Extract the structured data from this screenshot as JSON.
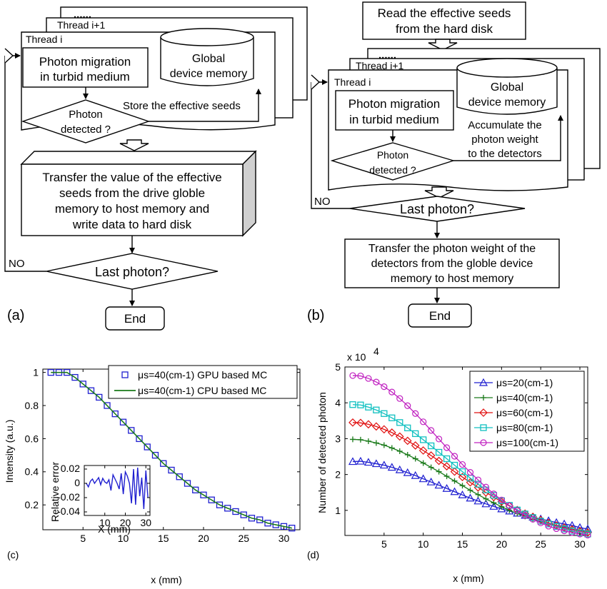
{
  "panel_a": {
    "letter": "(a)",
    "dots": "......",
    "thread_next": "Thread i+1",
    "thread": "Thread i",
    "photon_migration": [
      "Photon migration",
      "in turbid medium"
    ],
    "memory": [
      "Global",
      "device memory"
    ],
    "store_seeds": "Store the effective seeds",
    "decision": [
      "Photon",
      "detected ?"
    ],
    "transfer": [
      "Transfer the value of the effective",
      "seeds from the drive globle",
      "memory to host memory and",
      "write data to hard disk"
    ],
    "loop_no": "NO",
    "last_photon": "Last photon?",
    "end": "End"
  },
  "panel_b": {
    "letter": "(b)",
    "read_seeds": [
      "Read the effective seeds",
      "from the hard disk"
    ],
    "dots": "......",
    "thread_next": "Thread i+1",
    "thread": "Thread i",
    "photon_migration": [
      "Photon migration",
      "in turbid medium"
    ],
    "memory": [
      "Global",
      "device memory"
    ],
    "accumulate": [
      "Accumulate the",
      "photon weight",
      "to the detectors"
    ],
    "decision": [
      "Photon",
      "detected ?"
    ],
    "loop_no": "NO",
    "last_photon": "Last photon?",
    "transfer": [
      "Transfer the photon weight of the",
      "detectors from the globle device",
      "memory to host memory"
    ],
    "end": "End"
  },
  "chart_data": [
    {
      "type": "line",
      "panel_label": "(c)",
      "xlabel": "x (mm)",
      "ylabel": "Intensity (a.u.)",
      "xlim": [
        0,
        32
      ],
      "ylim": [
        0.05,
        1.02
      ],
      "xticks": [
        5,
        10,
        15,
        20,
        25,
        30
      ],
      "yticks": [
        0.2,
        0.4,
        0.6,
        0.8,
        1
      ],
      "ytick_labels": [
        "0.2",
        "0.4",
        "0.6",
        "0.8",
        "1"
      ],
      "legend_position": "top-right",
      "x": [
        1,
        2,
        3,
        4,
        5,
        6,
        7,
        8,
        9,
        10,
        11,
        12,
        13,
        14,
        15,
        16,
        17,
        18,
        19,
        20,
        21,
        22,
        23,
        24,
        25,
        26,
        27,
        28,
        29,
        30,
        31
      ],
      "series": [
        {
          "name": "μs=40(cm-1) GPU based MC",
          "marker": "square",
          "color": "#1f1fd0",
          "values": [
            1.0,
            1.0,
            1.0,
            0.97,
            0.93,
            0.89,
            0.85,
            0.8,
            0.75,
            0.7,
            0.65,
            0.6,
            0.55,
            0.5,
            0.45,
            0.41,
            0.37,
            0.33,
            0.29,
            0.26,
            0.23,
            0.2,
            0.18,
            0.16,
            0.14,
            0.12,
            0.11,
            0.09,
            0.08,
            0.07,
            0.06
          ]
        },
        {
          "name": "μs=40(cm-1) CPU based MC",
          "marker": "line",
          "color": "#1a7a1a",
          "values": [
            1.0,
            1.0,
            1.0,
            0.97,
            0.93,
            0.89,
            0.85,
            0.8,
            0.75,
            0.7,
            0.65,
            0.6,
            0.55,
            0.5,
            0.45,
            0.41,
            0.37,
            0.33,
            0.29,
            0.26,
            0.23,
            0.2,
            0.18,
            0.16,
            0.14,
            0.12,
            0.11,
            0.09,
            0.08,
            0.07,
            0.06
          ]
        }
      ],
      "inset": {
        "type": "line",
        "xlabel": "X (mm)",
        "ylabel": "Relative error",
        "xlim": [
          0,
          32
        ],
        "ylim": [
          -0.045,
          0.025
        ],
        "xticks": [
          10,
          20,
          30
        ],
        "yticks": [
          0.02,
          0,
          -0.02,
          -0.04
        ],
        "ytick_labels": [
          "0.02",
          "0",
          "-0.02",
          "-0.04"
        ],
        "color": "#1f1fd0",
        "x": [
          1,
          2,
          3,
          4,
          5,
          6,
          7,
          8,
          9,
          10,
          11,
          12,
          13,
          14,
          15,
          16,
          17,
          18,
          19,
          20,
          21,
          22,
          23,
          24,
          25,
          26,
          27,
          28,
          29,
          30,
          31
        ],
        "values": [
          0.0,
          -0.005,
          0.003,
          0.006,
          0.0,
          0.004,
          0.008,
          -0.002,
          0.007,
          0.002,
          0.0,
          0.005,
          -0.01,
          0.012,
          0.006,
          0.0,
          -0.008,
          0.014,
          -0.015,
          0.016,
          0.01,
          0.0,
          -0.028,
          0.02,
          -0.03,
          0.022,
          -0.018,
          0.008,
          -0.036,
          0.018,
          -0.02
        ]
      }
    },
    {
      "type": "line",
      "panel_label": "(d)",
      "xlabel": "x (mm)",
      "ylabel": "Number of detected photon",
      "scale_label": "x 10",
      "scale_exponent": "4",
      "xlim": [
        0,
        31
      ],
      "ylim": [
        0.3,
        5
      ],
      "xticks": [
        5,
        10,
        15,
        20,
        25,
        30
      ],
      "yticks": [
        1,
        2,
        3,
        4,
        5
      ],
      "legend_position": "top-right",
      "x": [
        1,
        2,
        3,
        4,
        5,
        6,
        7,
        8,
        9,
        10,
        11,
        12,
        13,
        14,
        15,
        16,
        17,
        18,
        19,
        20,
        21,
        22,
        23,
        24,
        25,
        26,
        27,
        28,
        29,
        30,
        31
      ],
      "series": [
        {
          "name": "μs=20(cm-1)",
          "marker": "triangle",
          "color": "#1f1fd0",
          "values": [
            2.36,
            2.37,
            2.34,
            2.3,
            2.26,
            2.2,
            2.13,
            2.05,
            1.97,
            1.88,
            1.79,
            1.7,
            1.61,
            1.52,
            1.43,
            1.34,
            1.26,
            1.18,
            1.11,
            1.04,
            0.98,
            0.92,
            0.86,
            0.81,
            0.76,
            0.71,
            0.66,
            0.62,
            0.58,
            0.52,
            0.48
          ]
        },
        {
          "name": "μs=40(cm-1)",
          "marker": "plus",
          "color": "#1a7a1a",
          "values": [
            2.98,
            2.97,
            2.93,
            2.88,
            2.82,
            2.74,
            2.65,
            2.55,
            2.44,
            2.32,
            2.2,
            2.08,
            1.95,
            1.82,
            1.69,
            1.56,
            1.44,
            1.32,
            1.21,
            1.1,
            1.0,
            0.91,
            0.83,
            0.75,
            0.68,
            0.62,
            0.56,
            0.51,
            0.47,
            0.43,
            0.4
          ]
        },
        {
          "name": "μs=60(cm-1)",
          "marker": "diamond",
          "color": "#e01010",
          "values": [
            3.45,
            3.44,
            3.4,
            3.34,
            3.26,
            3.17,
            3.06,
            2.94,
            2.81,
            2.67,
            2.53,
            2.38,
            2.23,
            2.08,
            1.93,
            1.78,
            1.64,
            1.5,
            1.37,
            1.24,
            1.12,
            1.01,
            0.91,
            0.82,
            0.73,
            0.65,
            0.58,
            0.52,
            0.47,
            0.42,
            0.38
          ]
        },
        {
          "name": "μs=80(cm-1)",
          "marker": "square",
          "color": "#10c0c0",
          "values": [
            3.95,
            3.94,
            3.88,
            3.8,
            3.7,
            3.58,
            3.45,
            3.3,
            3.14,
            2.97,
            2.8,
            2.62,
            2.44,
            2.26,
            2.08,
            1.9,
            1.73,
            1.57,
            1.42,
            1.27,
            1.14,
            1.01,
            0.9,
            0.8,
            0.7,
            0.62,
            0.55,
            0.48,
            0.42,
            0.37,
            0.34
          ]
        },
        {
          "name": "μs=100(cm-1)",
          "marker": "circle",
          "color": "#c020c0",
          "values": [
            4.76,
            4.75,
            4.68,
            4.58,
            4.45,
            4.3,
            4.12,
            3.92,
            3.7,
            3.47,
            3.23,
            2.99,
            2.75,
            2.51,
            2.28,
            2.06,
            1.85,
            1.65,
            1.46,
            1.29,
            1.13,
            0.99,
            0.86,
            0.75,
            0.65,
            0.56,
            0.49,
            0.43,
            0.38,
            0.34,
            0.31
          ]
        }
      ]
    }
  ]
}
